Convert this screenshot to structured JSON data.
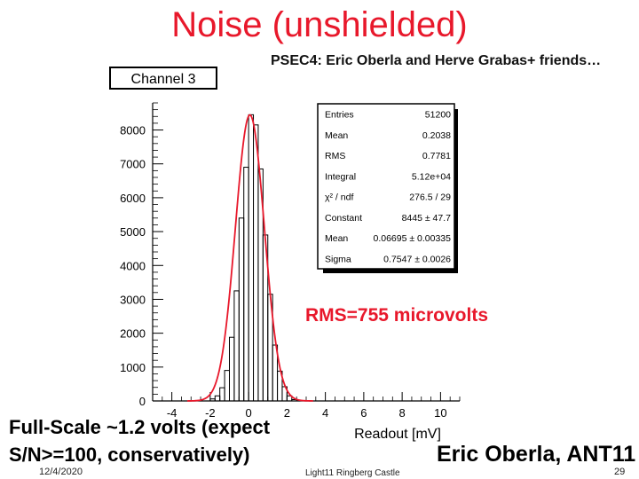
{
  "slide": {
    "title": "Noise (unshielded)",
    "subtitle": "PSEC4: Eric Oberla and Herve Grabas+ friends…",
    "rms_note": "RMS=755 microvolts",
    "fullscale_line1": "Full-Scale ~1.2 volts (expect",
    "fullscale_line2": "S/N>=100, conservatively)",
    "author": "Eric Oberla, ANT11",
    "footer_date": "12/4/2020",
    "footer_center": "Light11 Ringberg Castle",
    "page_number": "29",
    "colors": {
      "title": "#e8182b",
      "fit_curve": "#e8182b",
      "histogram": "#000000"
    }
  },
  "chart_data": {
    "type": "bar",
    "title": "Channel 3",
    "xlabel": "Readout [mV]",
    "ylabel": "",
    "xlim": [
      -5,
      11
    ],
    "ylim": [
      0,
      8800
    ],
    "x_ticks": [
      -4,
      -2,
      0,
      2,
      4,
      6,
      8,
      10
    ],
    "y_ticks": [
      0,
      1000,
      2000,
      3000,
      4000,
      5000,
      6000,
      7000,
      8000
    ],
    "grid": false,
    "legend": "none",
    "histogram": {
      "name": "Channel 3",
      "x": [
        -2.0,
        -1.75,
        -1.5,
        -1.25,
        -1.0,
        -0.75,
        -0.5,
        -0.25,
        0.0,
        0.25,
        0.5,
        0.75,
        1.0,
        1.25,
        1.5,
        1.75,
        2.0,
        2.25
      ],
      "values": [
        60,
        150,
        390,
        900,
        1880,
        3250,
        5400,
        6900,
        8450,
        8150,
        6850,
        4900,
        3150,
        1650,
        880,
        420,
        150,
        40
      ]
    },
    "fit": {
      "name": "gaus",
      "constant": 8445,
      "mean": 0.06695,
      "sigma": 0.7547
    },
    "stats_box": [
      {
        "label": "Entries",
        "value": "51200"
      },
      {
        "label": "Mean",
        "value": "0.2038"
      },
      {
        "label": "RMS",
        "value": "0.7781"
      },
      {
        "label": "Integral",
        "value": "5.12e+04"
      },
      {
        "label": "χ² / ndf",
        "value": "276.5 / 29"
      },
      {
        "label": "Constant",
        "value": "8445 ± 47.7"
      },
      {
        "label": "Mean",
        "value": "0.06695 ± 0.00335"
      },
      {
        "label": "Sigma",
        "value": "0.7547 ± 0.0026"
      }
    ]
  }
}
